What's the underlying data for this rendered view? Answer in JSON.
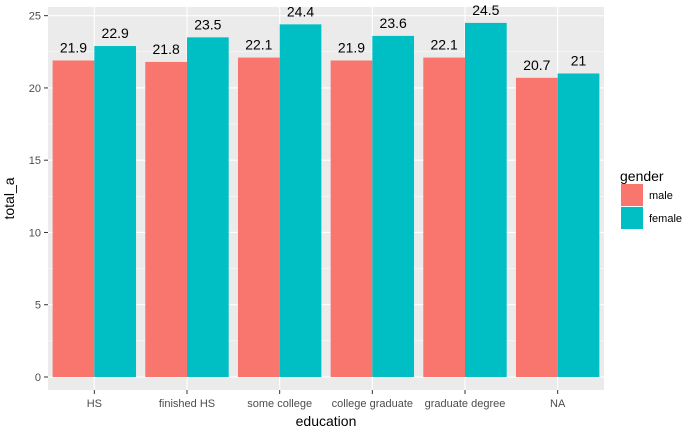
{
  "chart_data": {
    "type": "bar",
    "categories": [
      "HS",
      "finished HS",
      "some college",
      "college graduate",
      "graduate degree",
      "NA"
    ],
    "series": [
      {
        "name": "male",
        "color": "#F8766D",
        "values": [
          21.9,
          21.8,
          22.1,
          21.9,
          22.1,
          20.7
        ],
        "labels": [
          "21.9",
          "21.8",
          "22.1",
          "21.9",
          "22.1",
          "20.7"
        ]
      },
      {
        "name": "female",
        "color": "#00BFC4",
        "values": [
          22.9,
          23.5,
          24.4,
          23.6,
          24.5,
          21.0
        ],
        "labels": [
          "22.9",
          "23.5",
          "24.4",
          "23.6",
          "24.5",
          "21"
        ]
      }
    ],
    "xlabel": "education",
    "ylabel": "total_a",
    "ylim": [
      -0.9,
      25.6
    ],
    "yticks": [
      0,
      5,
      10,
      15,
      20,
      25
    ],
    "ytick_labels": [
      "0",
      "5",
      "10",
      "15",
      "20",
      "25"
    ],
    "legend": {
      "title": "gender",
      "position": "right"
    },
    "grid": true,
    "panel_background": "#EBEBEB",
    "grid_color": "#FFFFFF"
  }
}
